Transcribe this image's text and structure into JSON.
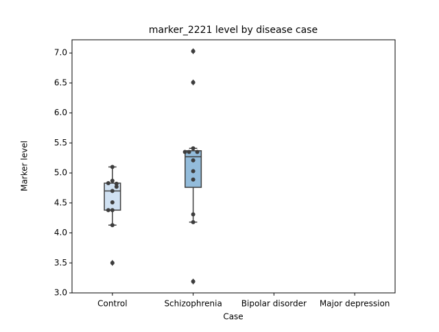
{
  "chart_data": {
    "type": "box",
    "title": "marker_2221 level by disease case",
    "x_label": "Case",
    "y_label": "Marker level",
    "categories": [
      "Control",
      "Schizophrenia",
      "Bipolar disorder",
      "Major depression"
    ],
    "ylim": [
      3.0,
      7.22
    ],
    "yticks": [
      {
        "value": 3.0,
        "label": "3.0"
      },
      {
        "value": 3.5,
        "label": "3.5"
      },
      {
        "value": 4.0,
        "label": "4.0"
      },
      {
        "value": 4.5,
        "label": "4.5"
      },
      {
        "value": 5.0,
        "label": "5.0"
      },
      {
        "value": 5.5,
        "label": "5.5"
      },
      {
        "value": 6.0,
        "label": "6.0"
      },
      {
        "value": 6.5,
        "label": "6.5"
      },
      {
        "value": 7.0,
        "label": "7.0"
      }
    ],
    "boxes": [
      {
        "color": "#d0e1f2",
        "q1": 4.38,
        "median": 4.7,
        "q3": 4.83,
        "whislo": 4.13,
        "whishi": 5.1,
        "fliers": [
          3.5
        ],
        "points": [
          5.1,
          4.87,
          4.83,
          4.82,
          4.77,
          4.7,
          4.51,
          4.38,
          4.38,
          4.13,
          3.5
        ]
      },
      {
        "color": "#93bcdb",
        "q1": 4.76,
        "median": 5.27,
        "q3": 5.37,
        "whislo": 4.18,
        "whishi": 5.41,
        "fliers": [
          7.03,
          6.51,
          3.19
        ],
        "points": [
          7.03,
          6.51,
          5.41,
          5.35,
          5.35,
          5.35,
          5.21,
          5.03,
          4.89,
          4.31,
          4.18,
          3.19
        ]
      },
      null,
      null
    ],
    "point_color": "#3d3d3d",
    "line_color": "#3d3d3d"
  }
}
